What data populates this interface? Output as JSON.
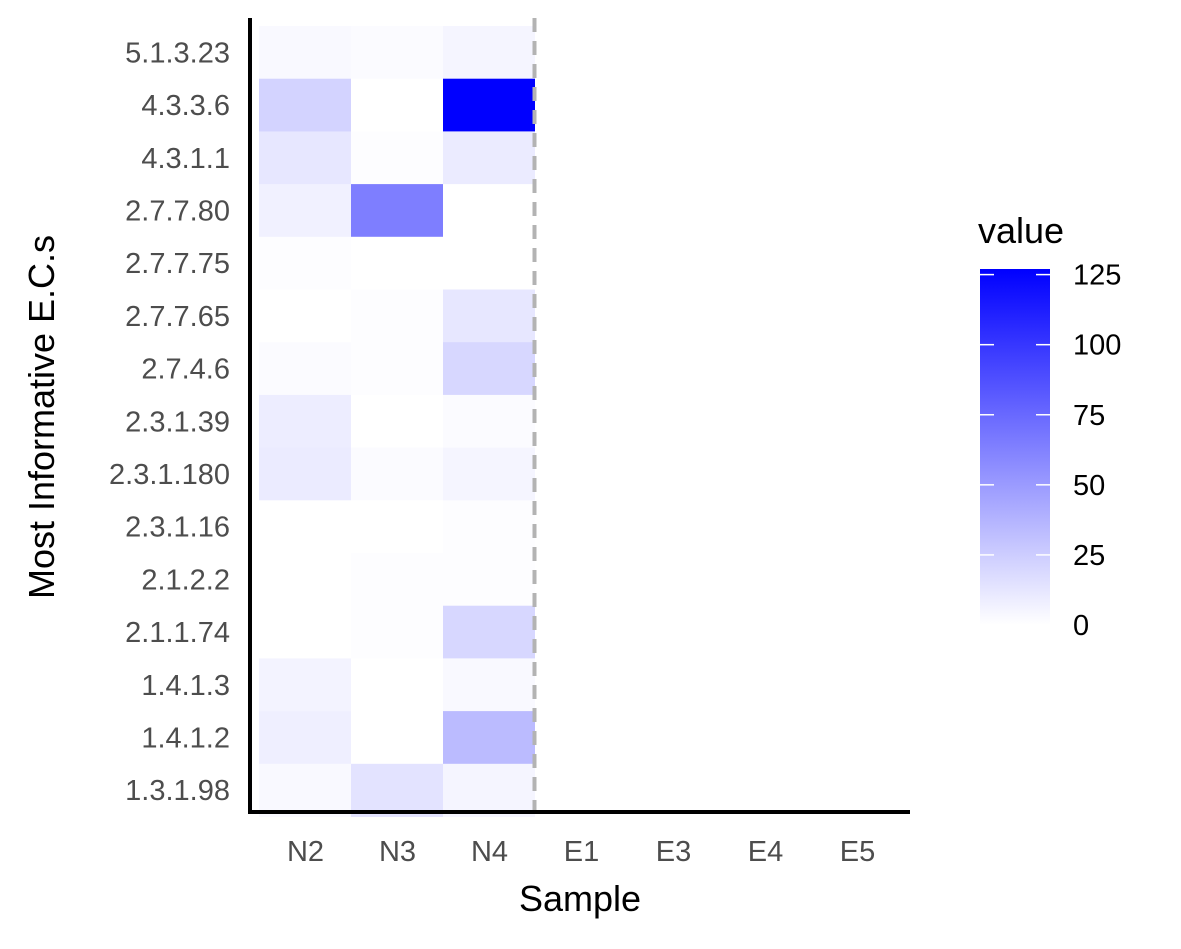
{
  "chart_data": {
    "type": "heatmap",
    "xlabel": "Sample",
    "ylabel": "Most Informative E.C.s",
    "x_categories": [
      "N2",
      "N3",
      "N4",
      "E1",
      "E3",
      "E4",
      "E5"
    ],
    "y_categories": [
      "5.1.3.23",
      "4.3.3.6",
      "4.3.1.1",
      "2.7.7.80",
      "2.7.7.75",
      "2.7.7.65",
      "2.7.4.6",
      "2.3.1.39",
      "2.3.1.180",
      "2.3.1.16",
      "2.1.2.2",
      "2.1.1.74",
      "1.4.1.3",
      "1.4.1.2",
      "1.3.1.98"
    ],
    "values": [
      [
        3,
        2,
        5,
        null,
        null,
        null,
        null
      ],
      [
        22,
        0,
        127,
        null,
        null,
        null,
        null
      ],
      [
        12,
        1,
        10,
        null,
        null,
        null,
        null
      ],
      [
        7,
        64,
        0,
        null,
        null,
        null,
        null
      ],
      [
        1,
        0,
        0,
        null,
        null,
        null,
        null
      ],
      [
        0,
        1,
        12,
        null,
        null,
        null,
        null
      ],
      [
        2,
        1,
        20,
        null,
        null,
        null,
        null
      ],
      [
        9,
        0,
        2,
        null,
        null,
        null,
        null
      ],
      [
        10,
        2,
        5,
        null,
        null,
        null,
        null
      ],
      [
        0,
        0,
        1,
        null,
        null,
        null,
        null
      ],
      [
        0,
        1,
        1,
        null,
        null,
        null,
        null
      ],
      [
        0,
        1,
        20,
        null,
        null,
        null,
        null
      ],
      [
        6,
        0,
        3,
        null,
        null,
        null,
        null
      ],
      [
        8,
        0,
        34,
        null,
        null,
        null,
        null
      ],
      [
        3,
        14,
        5,
        null,
        null,
        null,
        null
      ]
    ],
    "divider_after_category": "N4",
    "legend": {
      "title": "value",
      "ticks": [
        0,
        25,
        50,
        75,
        100,
        125
      ],
      "range": [
        0,
        127
      ],
      "position": "right"
    },
    "colors": {
      "low": "#ffffff",
      "high": "#0000ff",
      "divider": "#b3b3b3",
      "axis": "#000000"
    },
    "grid": false
  }
}
